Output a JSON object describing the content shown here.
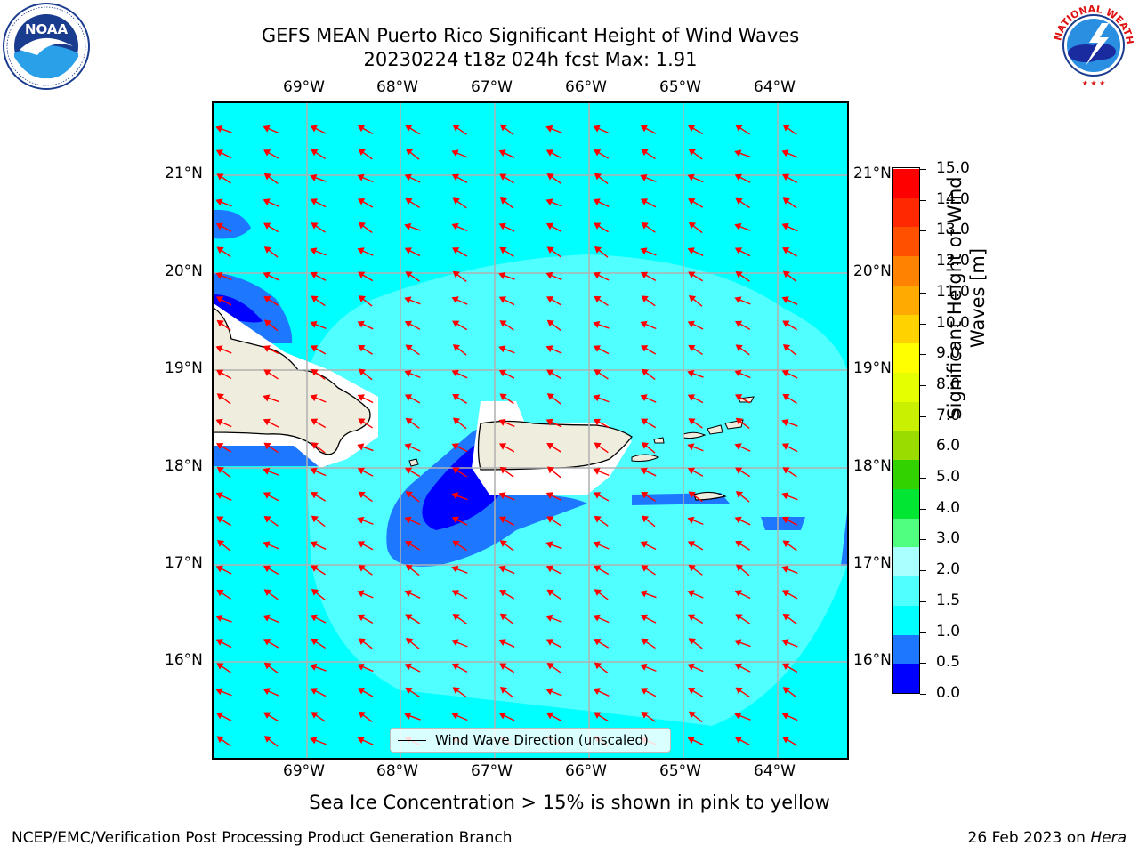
{
  "title": {
    "line1": "GEFS MEAN Puerto Rico Significant Height of Wind Waves",
    "line2": "20230224 t18z 024h fcst   Max: 1.91"
  },
  "map": {
    "lon_labels": [
      "69°W",
      "68°W",
      "67°W",
      "66°W",
      "65°W",
      "64°W"
    ],
    "lat_labels": [
      "21°N",
      "20°N",
      "19°N",
      "18°N",
      "17°N",
      "16°N"
    ],
    "legend_label": "Wind Wave Direction (unscaled)",
    "arrow_color": "#ff0000",
    "land_color": "#efedde",
    "grid_color": "#b0b0b0"
  },
  "colorbar": {
    "title": "Significant Height of Wind Waves [m]",
    "ticks": [
      "15.0",
      "14.0",
      "13.0",
      "12.0",
      "11.0",
      "10.0",
      "9.0",
      "8.0",
      "7.0",
      "6.0",
      "5.0",
      "4.0",
      "3.0",
      "2.0",
      "1.5",
      "1.0",
      "0.5",
      "0.0"
    ],
    "colors": [
      "#0000ff",
      "#1e78ff",
      "#00ffff",
      "#50ffff",
      "#aaffff",
      "#50ff80",
      "#00e632",
      "#32d200",
      "#9bdc00",
      "#c8f000",
      "#e6ff00",
      "#ffff00",
      "#ffd200",
      "#ffaa00",
      "#ff8200",
      "#ff5000",
      "#ff2800",
      "#ff0000"
    ]
  },
  "footnote": "Sea Ice Concentration > 15% is shown in pink to yellow",
  "credit_left": "NCEP/EMC/Verification Post Processing Product Generation Branch",
  "credit_date": "26 Feb 2023 on ",
  "credit_host": "Hera",
  "logos": {
    "noaa": "NOAA",
    "nws": "NATIONAL WEATHER SERVICE",
    "noaa_ring": "NATIONAL OCEANIC AND ATMOSPHERIC ADMINISTRATION · U.S. DEPARTMENT OF COMMERCE"
  }
}
